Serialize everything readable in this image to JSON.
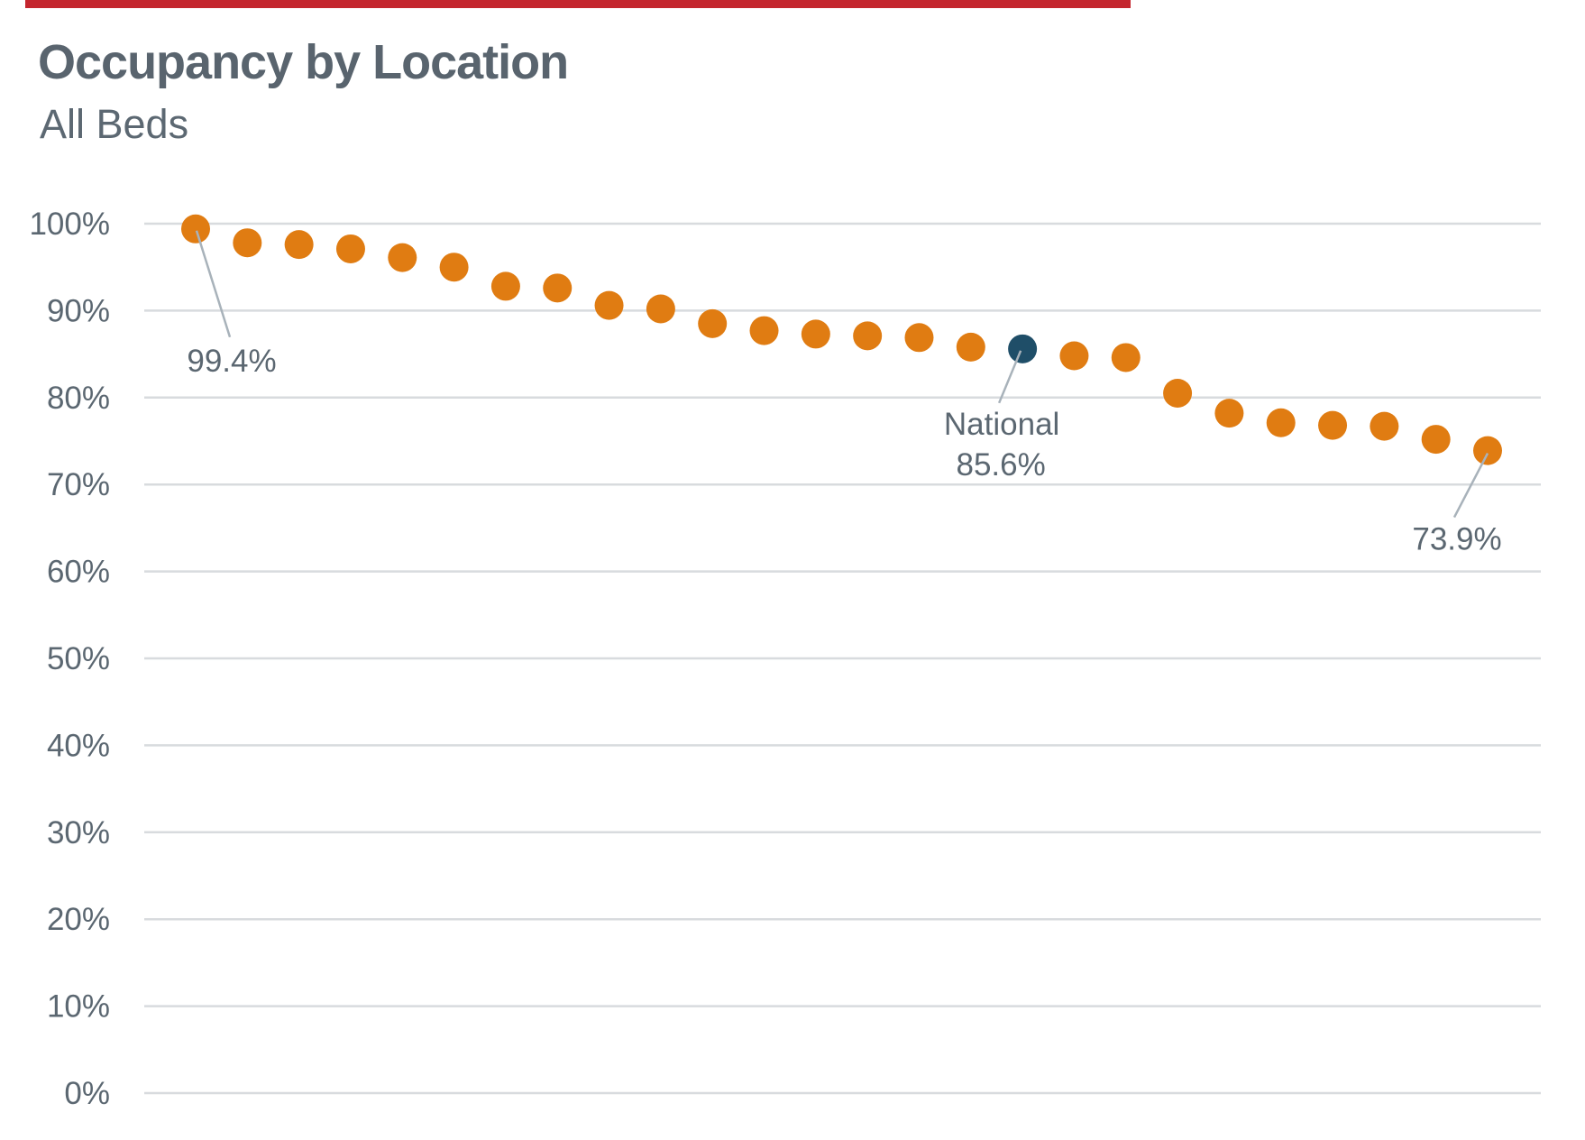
{
  "page": {
    "background": "#FFFFFF",
    "accent_bar_color": "#C4262E"
  },
  "header": {
    "title": "Occupancy by Location",
    "subtitle": "All Beds"
  },
  "chart_data": {
    "type": "scatter",
    "title": "Occupancy by Location",
    "subtitle": "All Beds",
    "xlabel": "",
    "ylabel": "",
    "ylim": [
      0,
      100
    ],
    "grid": true,
    "legend": false,
    "y_ticks": [
      "100%",
      "90%",
      "80%",
      "70%",
      "60%",
      "50%",
      "40%",
      "30%",
      "20%",
      "10%",
      "0%"
    ],
    "colors": {
      "location": "#E07C12",
      "national": "#1F4E68",
      "gridline": "#D8DBDE",
      "text": "#5B6771",
      "leader_line": "#A8B2BA",
      "accent_bar": "#C4262E",
      "title_text": "#59646E"
    },
    "points": [
      {
        "value": 99.4,
        "series": "location"
      },
      {
        "value": 97.8,
        "series": "location"
      },
      {
        "value": 97.6,
        "series": "location"
      },
      {
        "value": 97.1,
        "series": "location"
      },
      {
        "value": 96.1,
        "series": "location"
      },
      {
        "value": 95.0,
        "series": "location"
      },
      {
        "value": 92.8,
        "series": "location"
      },
      {
        "value": 92.6,
        "series": "location"
      },
      {
        "value": 90.6,
        "series": "location"
      },
      {
        "value": 90.2,
        "series": "location"
      },
      {
        "value": 88.5,
        "series": "location"
      },
      {
        "value": 87.7,
        "series": "location"
      },
      {
        "value": 87.3,
        "series": "location"
      },
      {
        "value": 87.1,
        "series": "location"
      },
      {
        "value": 86.9,
        "series": "location"
      },
      {
        "value": 85.8,
        "series": "location"
      },
      {
        "value": 85.6,
        "series": "national"
      },
      {
        "value": 84.8,
        "series": "location"
      },
      {
        "value": 84.6,
        "series": "location"
      },
      {
        "value": 80.5,
        "series": "location"
      },
      {
        "value": 78.2,
        "series": "location"
      },
      {
        "value": 77.1,
        "series": "location"
      },
      {
        "value": 76.8,
        "series": "location"
      },
      {
        "value": 76.7,
        "series": "location"
      },
      {
        "value": 75.2,
        "series": "location"
      },
      {
        "value": 73.9,
        "series": "location"
      }
    ],
    "annotations": [
      {
        "id": "first-point-label",
        "point_index": 0,
        "lines": [
          "99.4%"
        ]
      },
      {
        "id": "national-label",
        "point_index": 16,
        "lines": [
          "National",
          "85.6%"
        ]
      },
      {
        "id": "last-point-label",
        "point_index": 25,
        "lines": [
          "73.9%"
        ]
      }
    ]
  }
}
